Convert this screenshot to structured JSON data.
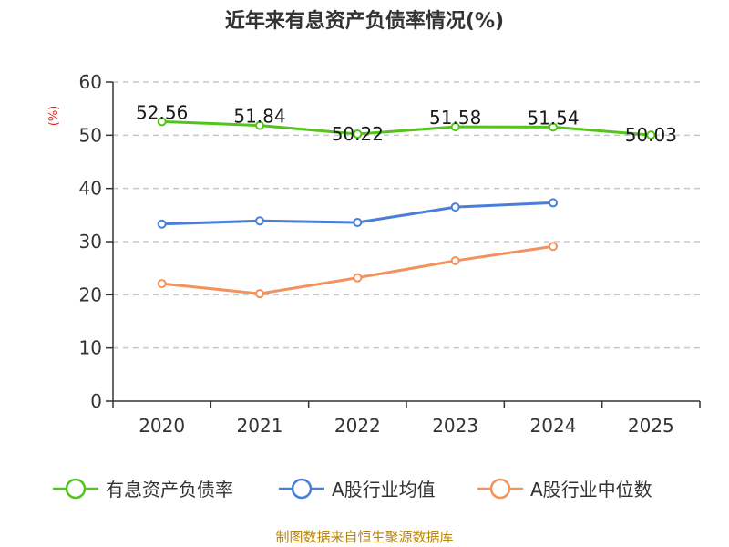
{
  "chart_data": {
    "type": "line",
    "title": "近年来有息资产负债率情况(%)",
    "unit_label": "(%)",
    "categories": [
      "2020",
      "2021",
      "2022",
      "2023",
      "2024",
      "2025"
    ],
    "y_ticks": [
      "0",
      "10",
      "20",
      "30",
      "40",
      "50",
      "60"
    ],
    "ylim": [
      0,
      60
    ],
    "grid": true,
    "legend_position": "bottom",
    "series": [
      {
        "name": "有息资产负债率",
        "color": "#52c41a",
        "values": [
          52.56,
          51.84,
          50.22,
          51.58,
          51.54,
          50.03
        ],
        "labels": [
          "52.56",
          "51.84",
          "50.22",
          "51.58",
          "51.54",
          "50.03"
        ]
      },
      {
        "name": "A股行业均值",
        "color": "#4a7fd8",
        "values": [
          33.3,
          33.9,
          33.6,
          36.5,
          37.3,
          null
        ]
      },
      {
        "name": "A股行业中位数",
        "color": "#f4925e",
        "values": [
          22.1,
          20.2,
          23.2,
          26.4,
          29.1,
          null
        ]
      }
    ]
  },
  "source_text": "制图数据来自恒生聚源数据库"
}
